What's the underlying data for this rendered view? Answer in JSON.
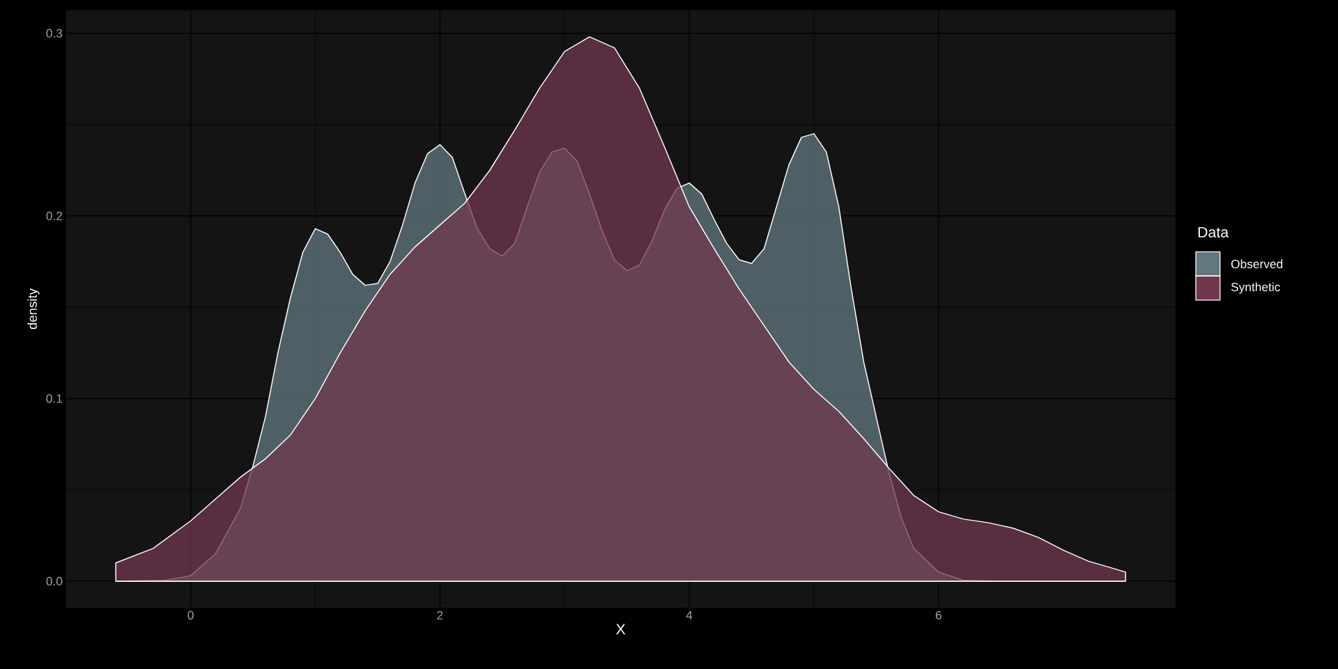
{
  "chart_data": {
    "type": "area",
    "xlabel": "X",
    "ylabel": "density",
    "legend_title": "Data",
    "legend": "right",
    "grid": true,
    "xlim": [
      -1.0,
      7.9
    ],
    "ylim": [
      -0.0145,
      0.3126
    ],
    "xticks": [
      0,
      2,
      4,
      6
    ],
    "yticks": [
      {
        "value": 0,
        "label": "0.0"
      },
      {
        "value": 0.1,
        "label": "0.1"
      },
      {
        "value": 0.2,
        "label": "0.2"
      },
      {
        "value": 0.3,
        "label": "0.3"
      }
    ],
    "series": [
      {
        "name": "Observed",
        "color": "#627880",
        "x": [
          -0.6,
          -0.2,
          0,
          0.2,
          0.4,
          0.5,
          0.6,
          0.7,
          0.8,
          0.9,
          1.0,
          1.1,
          1.2,
          1.3,
          1.4,
          1.5,
          1.6,
          1.7,
          1.8,
          1.9,
          2.0,
          2.1,
          2.2,
          2.3,
          2.4,
          2.5,
          2.6,
          2.7,
          2.8,
          2.9,
          3.0,
          3.1,
          3.2,
          3.3,
          3.4,
          3.5,
          3.6,
          3.7,
          3.8,
          3.9,
          4.0,
          4.1,
          4.2,
          4.3,
          4.4,
          4.5,
          4.6,
          4.7,
          4.8,
          4.9,
          5.0,
          5.1,
          5.2,
          5.3,
          5.4,
          5.5,
          5.6,
          5.7,
          5.8,
          6.0,
          6.2,
          6.5,
          7.0,
          7.5
        ],
        "values": [
          0,
          0.0005,
          0.003,
          0.015,
          0.04,
          0.063,
          0.09,
          0.125,
          0.155,
          0.18,
          0.193,
          0.19,
          0.18,
          0.168,
          0.162,
          0.163,
          0.175,
          0.195,
          0.218,
          0.234,
          0.239,
          0.232,
          0.212,
          0.193,
          0.182,
          0.178,
          0.185,
          0.205,
          0.224,
          0.235,
          0.237,
          0.23,
          0.212,
          0.192,
          0.176,
          0.17,
          0.173,
          0.186,
          0.203,
          0.215,
          0.218,
          0.212,
          0.198,
          0.185,
          0.176,
          0.174,
          0.182,
          0.205,
          0.228,
          0.243,
          0.245,
          0.235,
          0.205,
          0.16,
          0.12,
          0.09,
          0.06,
          0.035,
          0.018,
          0.005,
          0.0005,
          0,
          0,
          0
        ]
      },
      {
        "name": "Synthetic",
        "color": "#70374f",
        "x": [
          -0.6,
          -0.3,
          0,
          0.2,
          0.4,
          0.6,
          0.8,
          1.0,
          1.2,
          1.4,
          1.6,
          1.8,
          2.0,
          2.2,
          2.4,
          2.6,
          2.8,
          3.0,
          3.2,
          3.4,
          3.6,
          3.8,
          4.0,
          4.2,
          4.4,
          4.6,
          4.8,
          5.0,
          5.2,
          5.4,
          5.6,
          5.8,
          6.0,
          6.2,
          6.4,
          6.6,
          6.8,
          7.0,
          7.2,
          7.5
        ],
        "values": [
          0.01,
          0.018,
          0.033,
          0.045,
          0.057,
          0.067,
          0.08,
          0.1,
          0.125,
          0.148,
          0.168,
          0.183,
          0.195,
          0.207,
          0.225,
          0.247,
          0.27,
          0.29,
          0.298,
          0.292,
          0.27,
          0.238,
          0.205,
          0.182,
          0.16,
          0.14,
          0.12,
          0.105,
          0.093,
          0.078,
          0.062,
          0.047,
          0.038,
          0.034,
          0.032,
          0.029,
          0.024,
          0.017,
          0.011,
          0.005
        ]
      }
    ]
  }
}
